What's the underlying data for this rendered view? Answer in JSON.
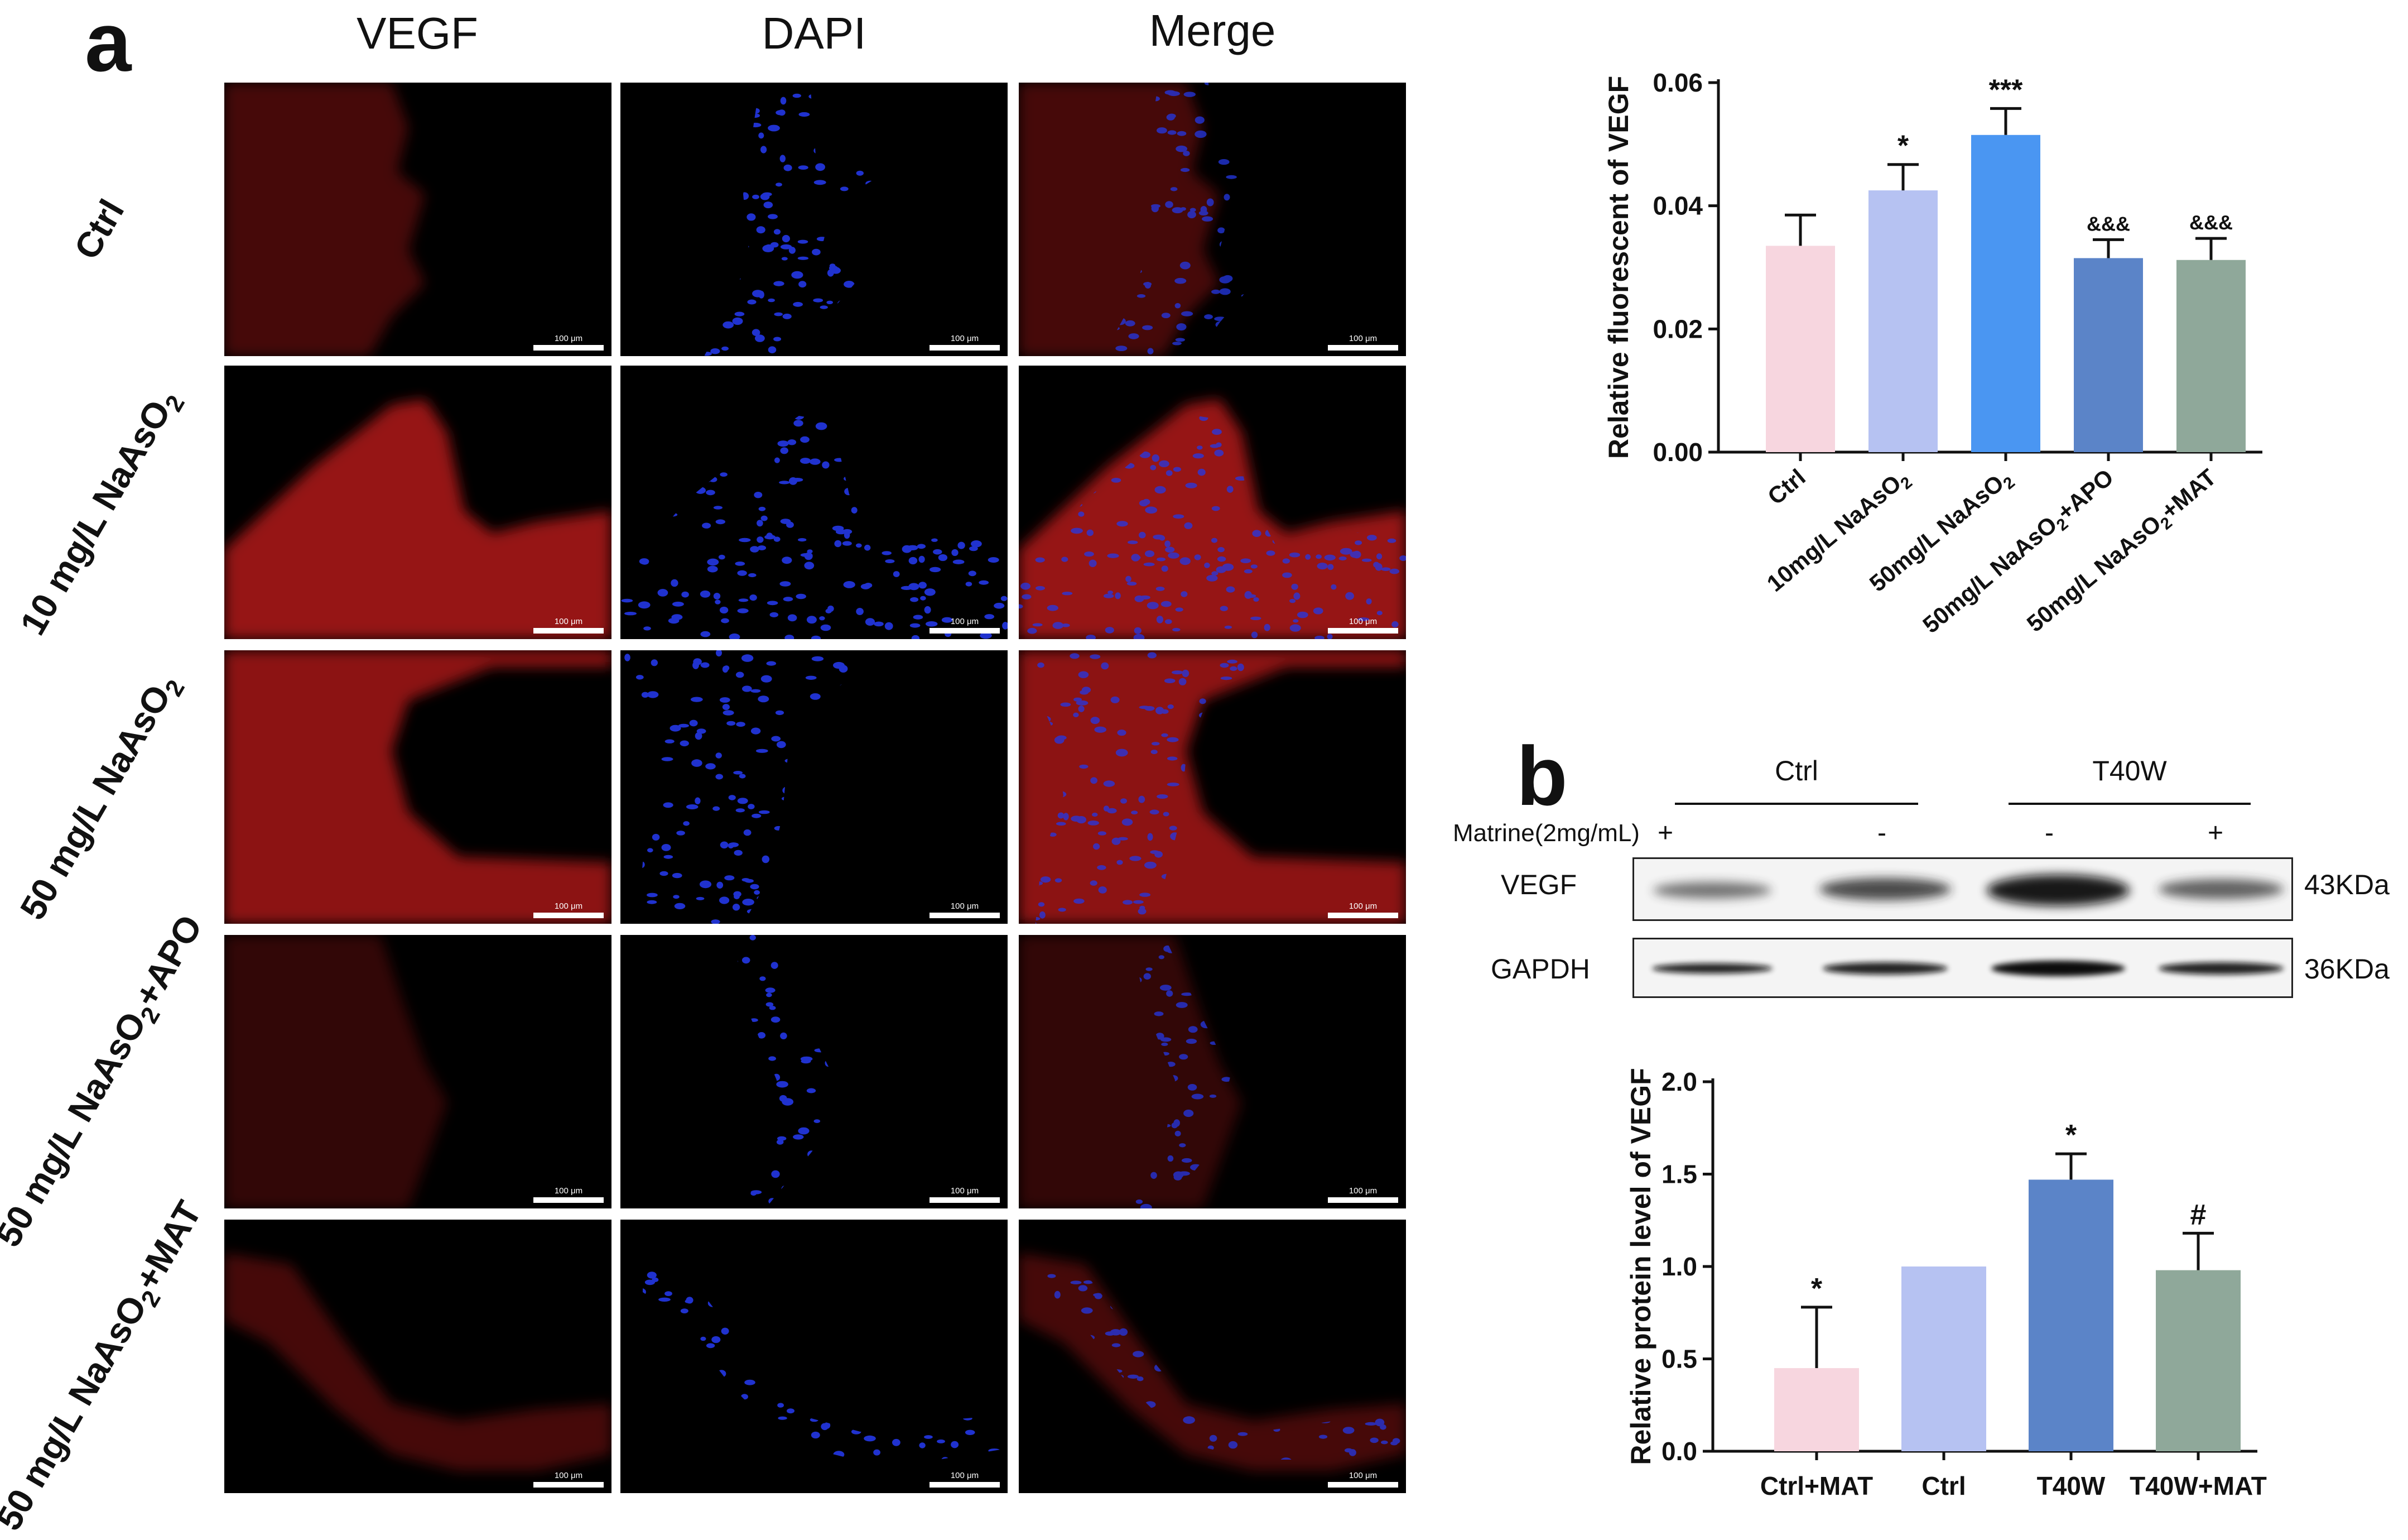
{
  "panel_a": {
    "letter": "a",
    "columns": [
      "VEGF",
      "DAPI",
      "Merge"
    ],
    "rows": [
      {
        "pre": "Ctrl",
        "sub": "",
        "post": ""
      },
      {
        "pre": "10 mg/L NaAsO",
        "sub": "2",
        "post": ""
      },
      {
        "pre": "50 mg/L NaAsO",
        "sub": "2",
        "post": ""
      },
      {
        "pre": "50 mg/L NaAsO",
        "sub": "2",
        "post": "+APO"
      },
      {
        "pre": "50 mg/L NaAsO",
        "sub": "2",
        "post": "+MAT"
      }
    ],
    "scale_label": "100 μm",
    "colors": {
      "vegf": "#c81e1e",
      "dapi": "#2438e6"
    }
  },
  "panel_b": {
    "letter": "b",
    "groups": [
      "Ctrl",
      "T40W"
    ],
    "treatment_label": "Matrine(2mg/mL)",
    "treatment_signs": [
      "+",
      "-",
      "-",
      "+"
    ],
    "bands": [
      {
        "name": "VEGF",
        "size": "43KDa"
      },
      {
        "name": "GAPDH",
        "size": "36KDa"
      }
    ]
  },
  "chart_data": [
    {
      "type": "bar",
      "ylabel": "Relative fluorescent of VEGF",
      "categories": [
        "Ctrl",
        "10mg/L NaAsO2",
        "50mg/L NaAsO2",
        "50mg/L NaAsO2+APO",
        "50mg/L NaAsO2+MAT"
      ],
      "values": [
        0.0335,
        0.0425,
        0.0515,
        0.0315,
        0.0312
      ],
      "errors": [
        0.005,
        0.0042,
        0.0043,
        0.003,
        0.0035
      ],
      "annotations": [
        "",
        "*",
        "***",
        "&&&",
        "&&&"
      ],
      "ylim": [
        0,
        0.06
      ],
      "yticks": [
        "0.00",
        "0.02",
        "0.04",
        "0.06"
      ],
      "colors": [
        "#f7d6df",
        "#b6c2f2",
        "#4a96f2",
        "#5b84c8",
        "#8fa89a"
      ]
    },
    {
      "type": "bar",
      "ylabel": "Relative protein level of VEGF",
      "categories": [
        "Ctrl+MAT",
        "Ctrl",
        "T40W",
        "T40W+MAT"
      ],
      "values": [
        0.45,
        1.0,
        1.47,
        0.98
      ],
      "errors": [
        0.33,
        0.0,
        0.14,
        0.2
      ],
      "annotations": [
        "*",
        "",
        "*",
        "#"
      ],
      "ylim": [
        0,
        2.0
      ],
      "yticks": [
        "0.0",
        "0.5",
        "1.0",
        "1.5",
        "2.0"
      ],
      "colors": [
        "#f7d6df",
        "#b6c2f2",
        "#5b84c8",
        "#8fa89a"
      ]
    }
  ]
}
